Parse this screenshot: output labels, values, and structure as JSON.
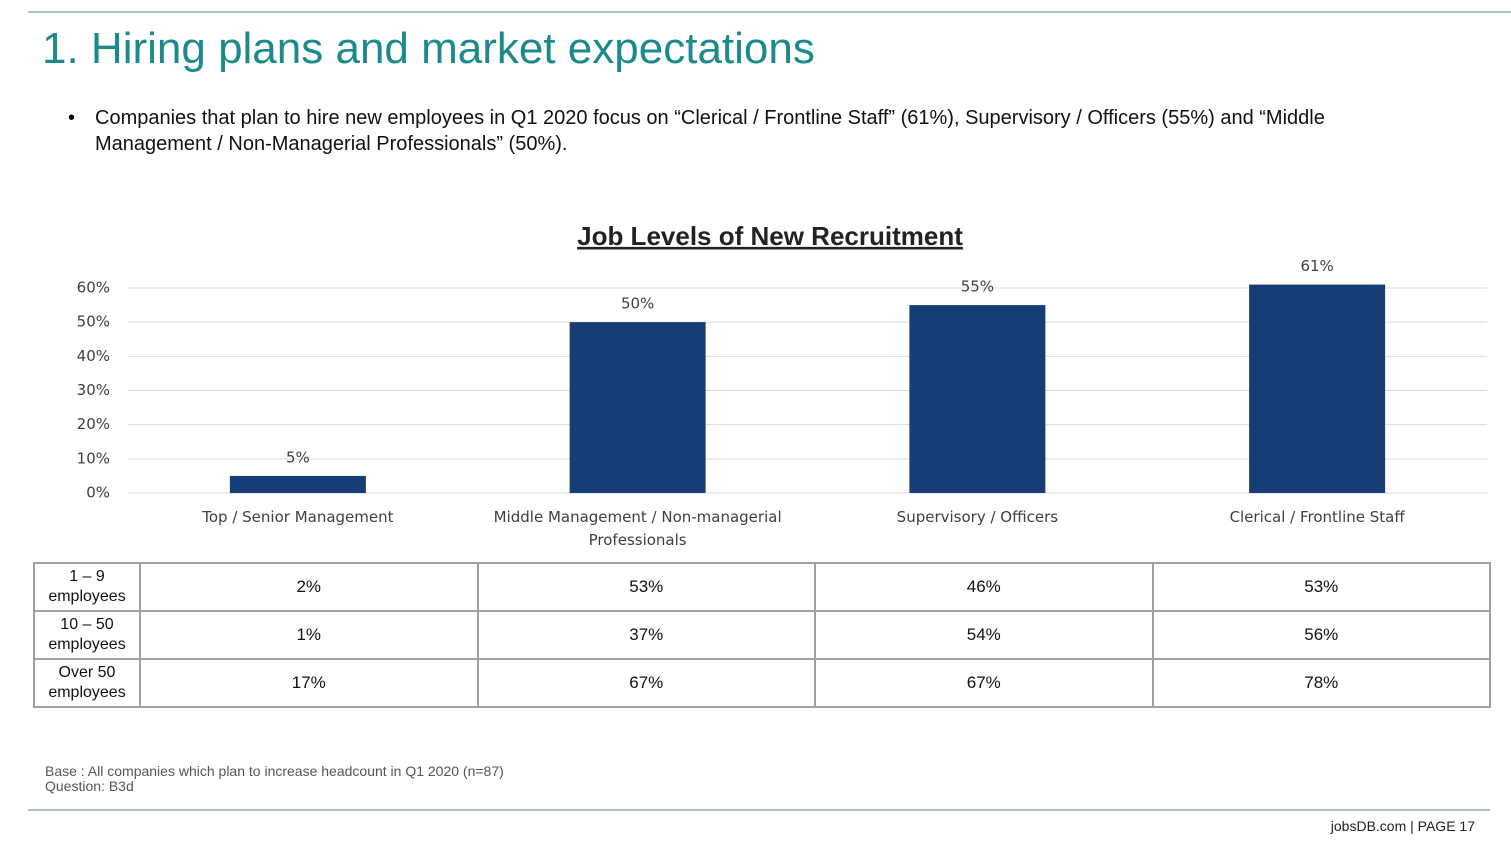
{
  "header": {
    "title": "1. Hiring plans and market expectations",
    "bullet": "Companies that plan to hire new employees in Q1 2020 focus on “Clerical / Frontline Staff” (61%), Supervisory / Officers (55%) and “Middle Management / Non-Managerial Professionals” (50%)."
  },
  "chart_data": {
    "type": "bar",
    "title": "Job Levels of New Recruitment",
    "categories": [
      "Top / Senior Management",
      "Middle Management / Non-managerial Professionals",
      "Supervisory / Officers",
      "Clerical / Frontline Staff"
    ],
    "values": [
      5,
      50,
      55,
      61
    ],
    "value_labels": [
      "5%",
      "50%",
      "55%",
      "61%"
    ],
    "color": "#173d76",
    "ylim": [
      0,
      60
    ],
    "yticks": [
      {
        "value": 0,
        "label": "0%"
      },
      {
        "value": 10,
        "label": "10%"
      },
      {
        "value": 20,
        "label": "20%"
      },
      {
        "value": 30,
        "label": "30%"
      },
      {
        "value": 40,
        "label": "40%"
      },
      {
        "value": 50,
        "label": "50%"
      },
      {
        "value": 60,
        "label": "60%"
      }
    ],
    "grid": true
  },
  "table": {
    "rows": [
      [
        "1 – 9 employees",
        "2%",
        "53%",
        "46%",
        "53%"
      ],
      [
        "10 – 50 employees",
        "1%",
        "37%",
        "54%",
        "56%"
      ],
      [
        "Over 50 employees",
        "17%",
        "67%",
        "67%",
        "78%"
      ]
    ]
  },
  "footer": {
    "base": "Base : All companies which plan to increase headcount in Q1 2020 (n=87)",
    "question": "Question: B3d",
    "page": "jobsDB.com | PAGE 17"
  }
}
